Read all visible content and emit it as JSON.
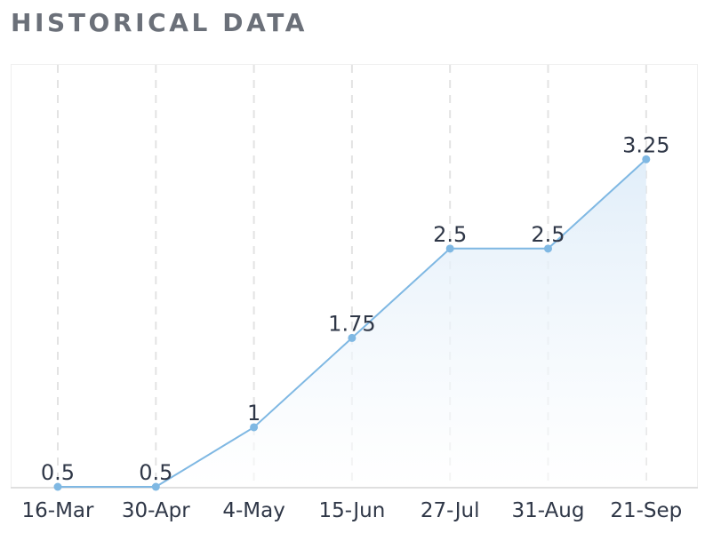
{
  "header": {
    "title": "HISTORICAL DATA"
  },
  "colors": {
    "line": "#7fb8e3",
    "area_top": "#dcebf8",
    "grid": "#e3e3e3",
    "text": "#2f3747",
    "title": "#6b7079"
  },
  "chart_data": {
    "type": "area",
    "title": "",
    "xlabel": "",
    "ylabel": "",
    "categories": [
      "16-Mar",
      "30-Apr",
      "4-May",
      "15-Jun",
      "27-Jul",
      "31-Aug",
      "21-Sep"
    ],
    "values": [
      0.5,
      0.5,
      1,
      1.75,
      2.5,
      2.5,
      3.25
    ],
    "data_labels": [
      "0.5",
      "0.5",
      "1",
      "1.75",
      "2.5",
      "2.5",
      "3.25"
    ],
    "ylim": [
      0.5,
      4.05
    ],
    "grid": "vertical dashed",
    "legend": "none"
  }
}
